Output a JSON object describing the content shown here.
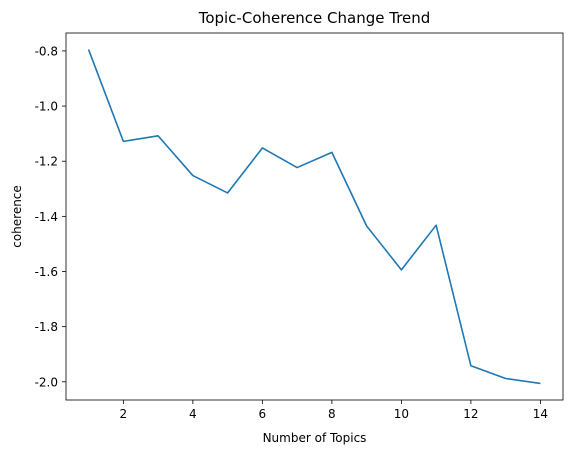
{
  "chart_data": {
    "type": "line",
    "title": "Topic-Coherence Change Trend",
    "xlabel": "Number of Topics",
    "ylabel": "coherence",
    "x": [
      1,
      2,
      3,
      4,
      5,
      6,
      7,
      8,
      9,
      10,
      11,
      12,
      13,
      14
    ],
    "series": [
      {
        "values": [
          -0.795,
          -1.128,
          -1.108,
          -1.252,
          -1.315,
          -1.152,
          -1.223,
          -1.168,
          -1.435,
          -1.594,
          -1.432,
          -1.942,
          -1.988,
          -2.006
        ]
      }
    ],
    "xlim": [
      0.35,
      14.65
    ],
    "ylim": [
      -2.066,
      -0.735
    ],
    "x_ticks": [
      2,
      4,
      6,
      8,
      10,
      12,
      14
    ],
    "x_tick_labels": [
      "2",
      "4",
      "6",
      "8",
      "10",
      "12",
      "14"
    ],
    "y_ticks": [
      -0.8,
      -1.0,
      -1.2,
      -1.4,
      -1.6,
      -1.8,
      -2.0
    ],
    "y_tick_labels": [
      "-0.8",
      "-1.0",
      "-1.2",
      "-1.4",
      "-1.6",
      "-1.8",
      "-2.0"
    ],
    "grid": false,
    "legend": "none",
    "colors": {
      "line": "#1f77b4",
      "axes": "#000000",
      "background": "#ffffff"
    }
  }
}
